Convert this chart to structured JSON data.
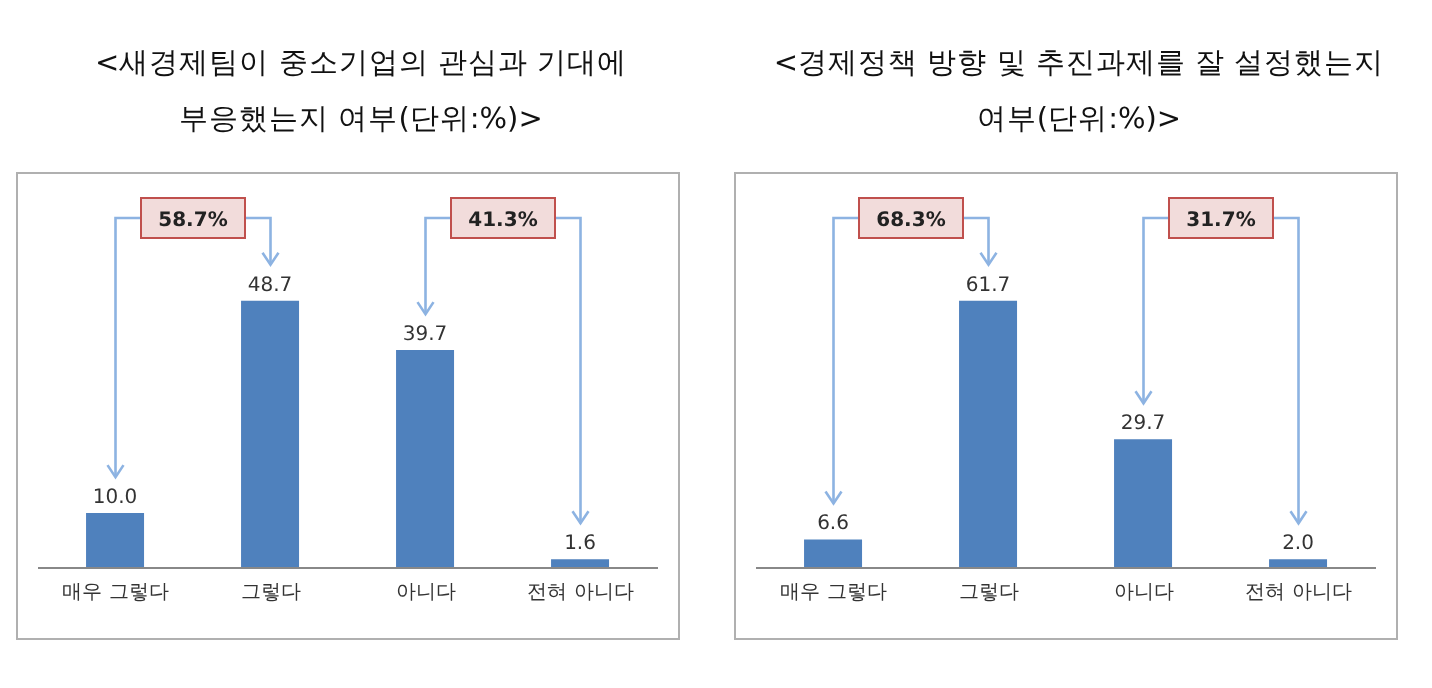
{
  "chart_data": [
    {
      "type": "bar",
      "title": "<새경제팀이 중소기업의 관심과 기대에 부응했는지 여부(단위:%)>",
      "categories": [
        "매우 그렇다",
        "그렇다",
        "아니다",
        "전혀 아니다"
      ],
      "values": [
        10.0,
        48.7,
        39.7,
        1.6
      ],
      "value_labels": [
        "10.0",
        "48.7",
        "39.7",
        "1.6"
      ],
      "color": "#4f81bd",
      "annotations": [
        "58.7%",
        "41.3%"
      ]
    },
    {
      "type": "bar",
      "title": "<경제정책 방향 및 추진과제를 잘 설정했는지 여부(단위:%)>",
      "categories": [
        "매우 그렇다",
        "그렇다",
        "아니다",
        "전혀 아니다"
      ],
      "values": [
        6.6,
        61.7,
        29.7,
        2.0
      ],
      "value_labels": [
        "6.6",
        "61.7",
        "29.7",
        "2.0"
      ],
      "color": "#4f81bd",
      "annotations": [
        "68.3%",
        "31.7%"
      ]
    }
  ]
}
